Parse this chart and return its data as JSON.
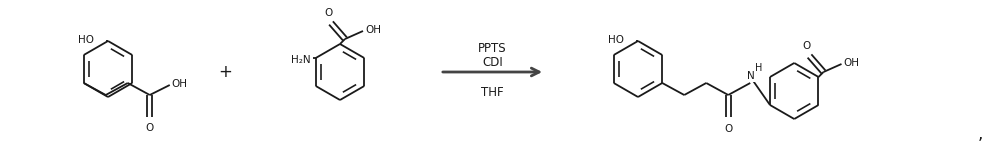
{
  "figsize": [
    10.0,
    1.54
  ],
  "dpi": 100,
  "background": "#ffffff",
  "line_color": "#1a1a1a",
  "arrow_color": "#444444",
  "font_size_atom": 7.5,
  "font_size_reagent": 8.5,
  "bond_lw": 1.3,
  "scale": 0.32,
  "reagents": [
    "PPTS",
    "CDI",
    "THF"
  ],
  "comma": ","
}
